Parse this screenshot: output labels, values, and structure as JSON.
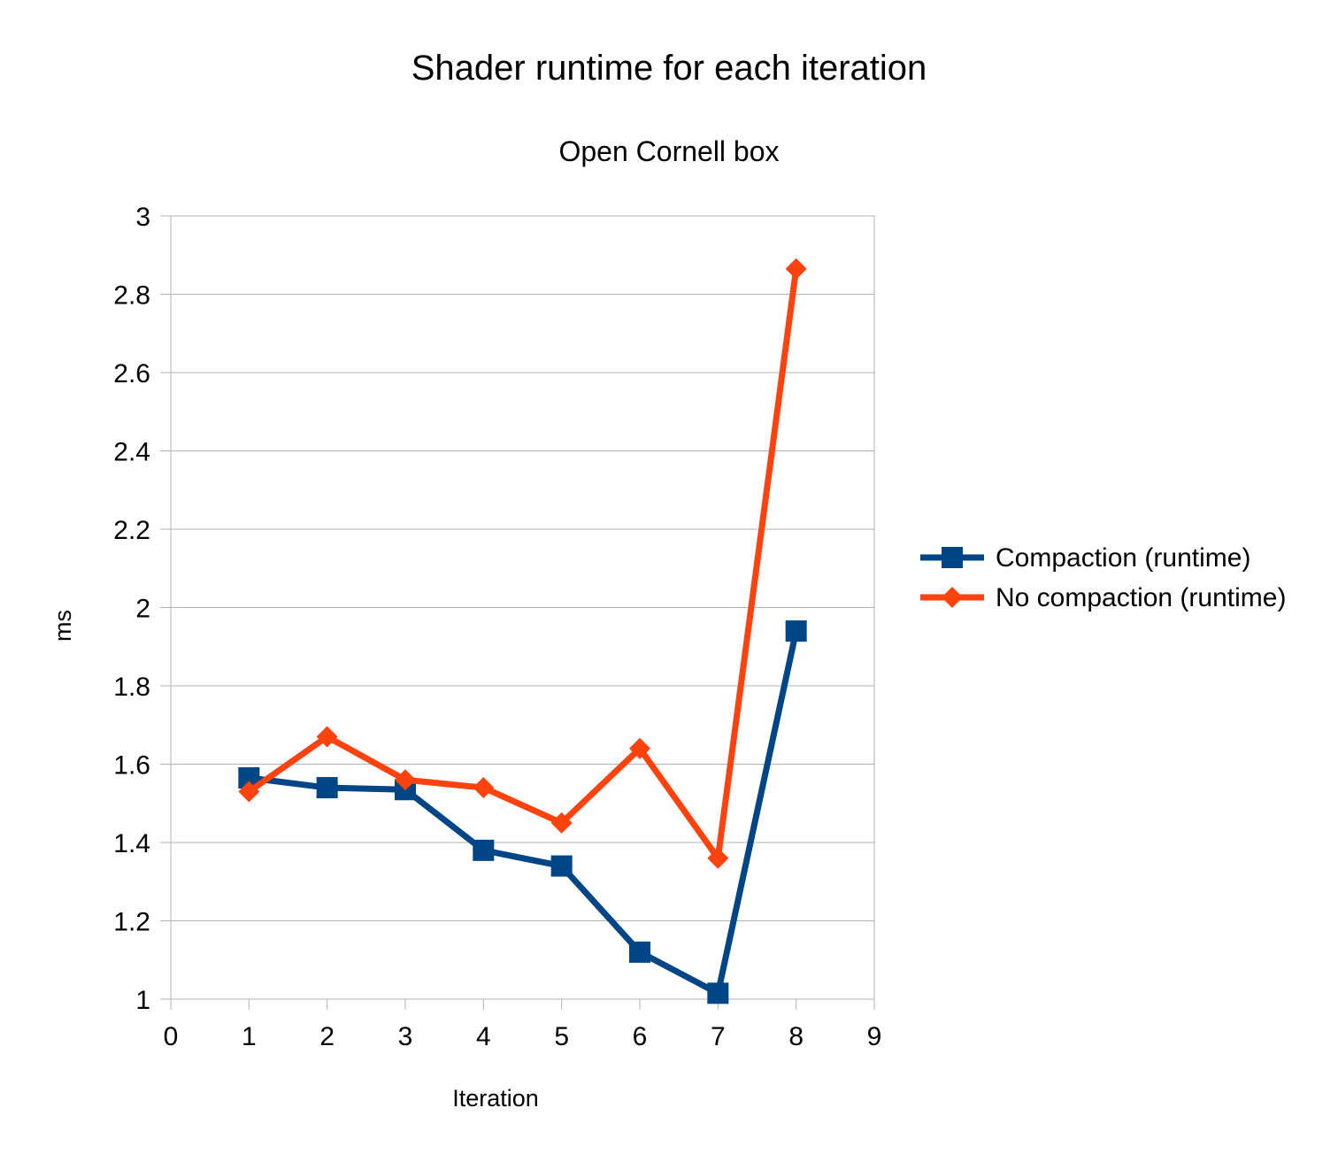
{
  "chart_data": {
    "type": "line",
    "title": "Shader runtime for each iteration",
    "subtitle": "Open Cornell box",
    "xlabel": "Iteration",
    "ylabel": "ms",
    "xlim": [
      0,
      9
    ],
    "ylim": [
      1,
      3
    ],
    "x_ticks": [
      "0",
      "1",
      "2",
      "3",
      "4",
      "5",
      "6",
      "7",
      "8",
      "9"
    ],
    "y_ticks": [
      "1",
      "1.2",
      "1.4",
      "1.6",
      "1.8",
      "2",
      "2.2",
      "2.4",
      "2.6",
      "2.8",
      "3"
    ],
    "grid": "horizontal",
    "legend_position": "right",
    "x": [
      1,
      2,
      3,
      4,
      5,
      6,
      7,
      8
    ],
    "series": [
      {
        "name": "Compaction (runtime)",
        "color": "#004586",
        "marker": "square",
        "values": [
          1.565,
          1.54,
          1.535,
          1.38,
          1.34,
          1.12,
          1.015,
          1.94
        ]
      },
      {
        "name": "No compaction (runtime)",
        "color": "#ff420e",
        "marker": "diamond",
        "values": [
          1.53,
          1.67,
          1.56,
          1.54,
          1.45,
          1.64,
          1.36,
          2.865
        ]
      }
    ]
  }
}
